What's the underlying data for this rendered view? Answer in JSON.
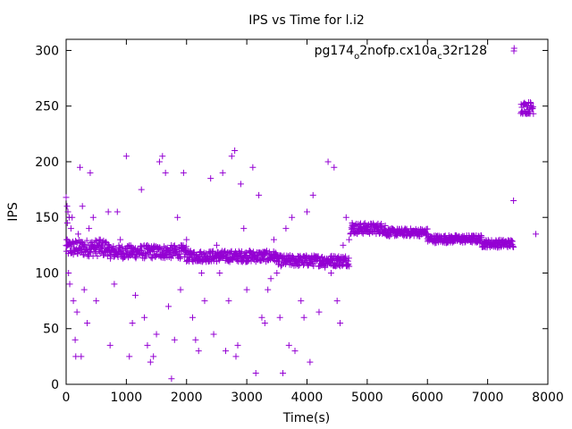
{
  "chart_data": {
    "type": "scatter",
    "title": "IPS vs Time for l.i2",
    "xlabel": "Time(s)",
    "ylabel": "IPS",
    "xlim": [
      0,
      8000
    ],
    "ylim": [
      0,
      310
    ],
    "xticks": [
      "0",
      "1000",
      "2000",
      "3000",
      "4000",
      "5000",
      "6000",
      "7000",
      "8000"
    ],
    "yticks": [
      "0",
      "50",
      "100",
      "150",
      "200",
      "250",
      "300"
    ],
    "grid": false,
    "legend_position": "top-right",
    "marker": "+",
    "series": [
      {
        "name_parts": {
          "base": "pg174",
          "sub1": "o",
          "mid": "2nofp.cx10a",
          "sub2": "c",
          "tail": "32r128"
        },
        "color": "#9400d3",
        "band_segments": [
          {
            "x_start": 0,
            "x_end": 700,
            "y_low": 115,
            "y_high": 130
          },
          {
            "x_start": 700,
            "x_end": 2000,
            "y_low": 113,
            "y_high": 125
          },
          {
            "x_start": 2000,
            "x_end": 3500,
            "y_low": 110,
            "y_high": 120
          },
          {
            "x_start": 3500,
            "x_end": 4700,
            "y_low": 106,
            "y_high": 116
          },
          {
            "x_start": 4720,
            "x_end": 5300,
            "y_low": 135,
            "y_high": 145
          },
          {
            "x_start": 5300,
            "x_end": 6000,
            "y_low": 133,
            "y_high": 140
          },
          {
            "x_start": 6000,
            "x_end": 6900,
            "y_low": 127,
            "y_high": 134
          },
          {
            "x_start": 6900,
            "x_end": 7430,
            "y_low": 123,
            "y_high": 130
          },
          {
            "x_start": 7550,
            "x_end": 7760,
            "y_low": 243,
            "y_high": 254
          }
        ],
        "points": [
          [
            0,
            168
          ],
          [
            15,
            160
          ],
          [
            30,
            155
          ],
          [
            50,
            150
          ],
          [
            20,
            145
          ],
          [
            40,
            100
          ],
          [
            60,
            90
          ],
          [
            10,
            130
          ],
          [
            80,
            140
          ],
          [
            100,
            150
          ],
          [
            120,
            75
          ],
          [
            140,
            120
          ],
          [
            150,
            40
          ],
          [
            160,
            25
          ],
          [
            180,
            65
          ],
          [
            200,
            135
          ],
          [
            230,
            195
          ],
          [
            250,
            25
          ],
          [
            270,
            160
          ],
          [
            300,
            85
          ],
          [
            350,
            55
          ],
          [
            380,
            140
          ],
          [
            400,
            190
          ],
          [
            450,
            150
          ],
          [
            500,
            75
          ],
          [
            550,
            130
          ],
          [
            600,
            120
          ],
          [
            700,
            155
          ],
          [
            730,
            35
          ],
          [
            800,
            90
          ],
          [
            850,
            155
          ],
          [
            900,
            130
          ],
          [
            1000,
            205
          ],
          [
            1050,
            25
          ],
          [
            1100,
            55
          ],
          [
            1150,
            80
          ],
          [
            1200,
            120
          ],
          [
            1250,
            175
          ],
          [
            1300,
            60
          ],
          [
            1350,
            35
          ],
          [
            1400,
            20
          ],
          [
            1450,
            25
          ],
          [
            1500,
            45
          ],
          [
            1550,
            200
          ],
          [
            1600,
            205
          ],
          [
            1650,
            190
          ],
          [
            1700,
            70
          ],
          [
            1750,
            5
          ],
          [
            1800,
            40
          ],
          [
            1850,
            150
          ],
          [
            1900,
            85
          ],
          [
            1950,
            190
          ],
          [
            2000,
            130
          ],
          [
            2100,
            60
          ],
          [
            2150,
            40
          ],
          [
            2200,
            30
          ],
          [
            2250,
            100
          ],
          [
            2300,
            75
          ],
          [
            2400,
            185
          ],
          [
            2450,
            45
          ],
          [
            2500,
            125
          ],
          [
            2550,
            100
          ],
          [
            2600,
            190
          ],
          [
            2650,
            30
          ],
          [
            2700,
            75
          ],
          [
            2750,
            205
          ],
          [
            2800,
            210
          ],
          [
            2820,
            25
          ],
          [
            2850,
            35
          ],
          [
            2900,
            180
          ],
          [
            2950,
            140
          ],
          [
            3000,
            85
          ],
          [
            3050,
            120
          ],
          [
            3100,
            195
          ],
          [
            3150,
            10
          ],
          [
            3200,
            170
          ],
          [
            3250,
            60
          ],
          [
            3300,
            55
          ],
          [
            3350,
            85
          ],
          [
            3400,
            95
          ],
          [
            3450,
            130
          ],
          [
            3500,
            100
          ],
          [
            3550,
            60
          ],
          [
            3600,
            10
          ],
          [
            3650,
            140
          ],
          [
            3700,
            35
          ],
          [
            3750,
            150
          ],
          [
            3800,
            30
          ],
          [
            3850,
            115
          ],
          [
            3900,
            75
          ],
          [
            3950,
            60
          ],
          [
            4000,
            155
          ],
          [
            4050,
            20
          ],
          [
            4100,
            170
          ],
          [
            4200,
            65
          ],
          [
            4300,
            105
          ],
          [
            4350,
            200
          ],
          [
            4400,
            100
          ],
          [
            4450,
            195
          ],
          [
            4500,
            75
          ],
          [
            4550,
            55
          ],
          [
            4600,
            125
          ],
          [
            4650,
            150
          ],
          [
            4700,
            130
          ],
          [
            4750,
            145
          ],
          [
            7430,
            165
          ],
          [
            7440,
            302
          ],
          [
            7800,
            135
          ]
        ]
      }
    ]
  }
}
